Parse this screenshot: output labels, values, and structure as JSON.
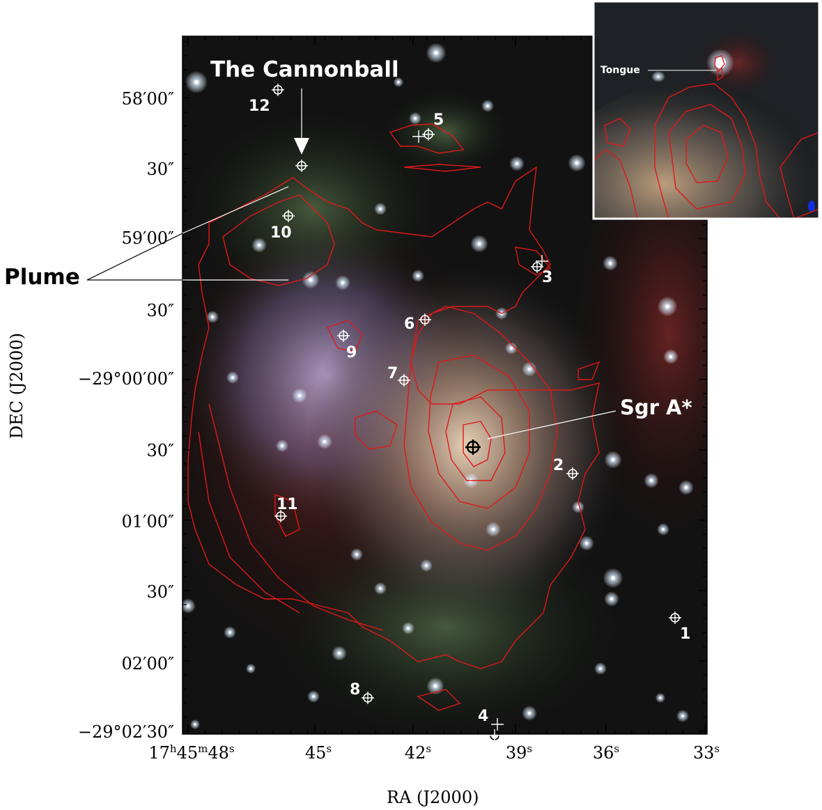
{
  "labels": {
    "cannonball": "The Cannonball",
    "plume": "Plume",
    "sgra": "Sgr A*",
    "tongue": "Tongue"
  },
  "axes": {
    "xlabel": "RA (J2000)",
    "ylabel": "DEC (J2000)",
    "y_ticks": [
      "58′00″",
      "30″",
      "59′00″",
      "30″",
      "−29°00′00″",
      "30″",
      "01′00″",
      "30″",
      "02′00″",
      "−29°02′30″"
    ],
    "x_ticks": [
      "17h45m48s",
      "45s",
      "42s",
      "39s",
      "36s",
      "33s"
    ]
  },
  "sources": [
    "1",
    "2",
    "3",
    "4",
    "5",
    "6",
    "7",
    "8",
    "9",
    "10",
    "11",
    "12"
  ],
  "colors": {
    "contour": "#e01818",
    "background": "#121212",
    "text_on_image": "#ffffff"
  }
}
